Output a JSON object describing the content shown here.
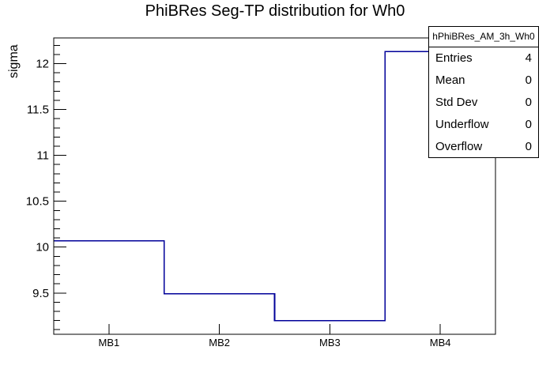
{
  "chart_data": {
    "type": "step-histogram",
    "title": "PhiBRes Seg-TP distribution for Wh0",
    "ylabel": "sigma",
    "xlabel": "",
    "categories": [
      "MB1",
      "MB2",
      "MB3",
      "MB4"
    ],
    "values": [
      10.07,
      9.49,
      9.2,
      12.13
    ],
    "ylim": [
      9.05,
      12.28
    ],
    "yticks": [
      9.5,
      10,
      10.5,
      11,
      11.5,
      12
    ],
    "y_minor_step": 0.1,
    "grid": false,
    "legend_position": "none",
    "line_color": "#000099",
    "axis_color": "#000000",
    "background_color": "#ffffff"
  },
  "stats_box": {
    "title": "hPhiBRes_AM_3h_Wh0",
    "rows": [
      {
        "label": "Entries",
        "value": "4"
      },
      {
        "label": "Mean",
        "value": "0"
      },
      {
        "label": "Std Dev",
        "value": "0"
      },
      {
        "label": "Underflow",
        "value": "0"
      },
      {
        "label": "Overflow",
        "value": "0"
      }
    ]
  }
}
